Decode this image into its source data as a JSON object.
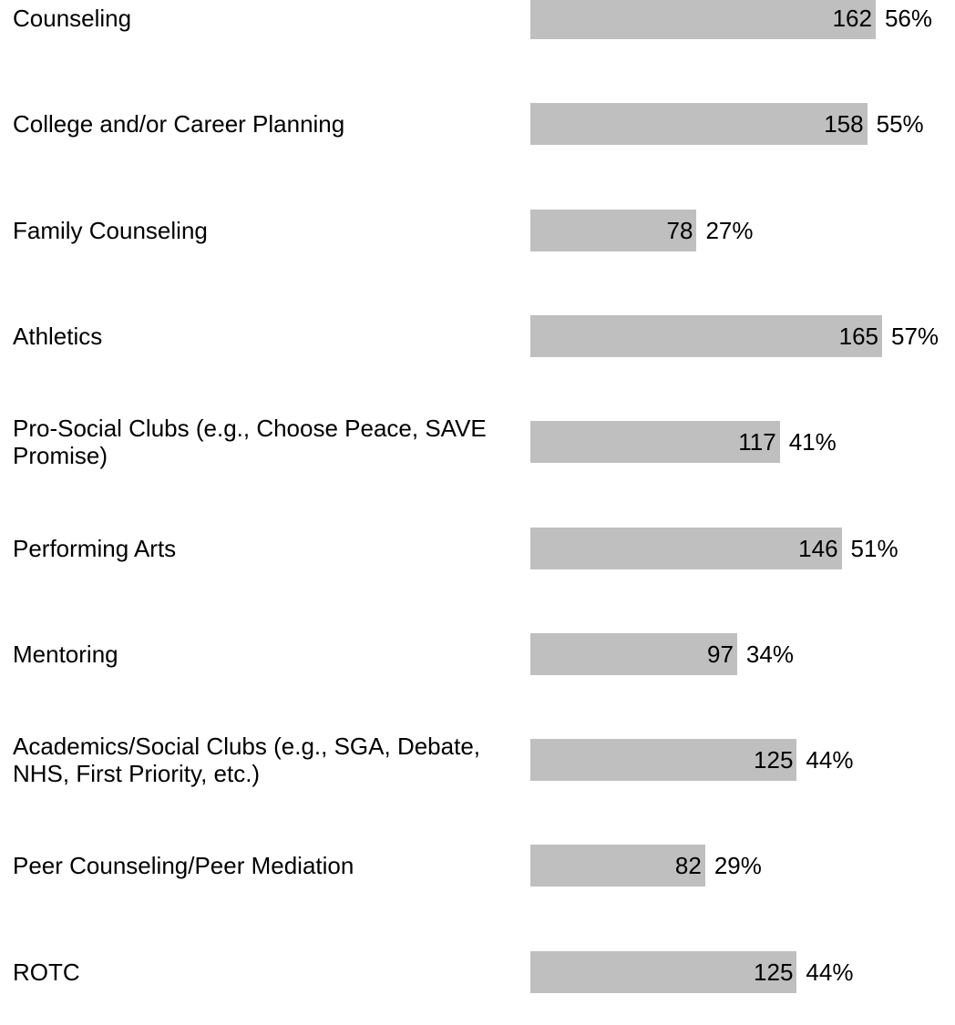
{
  "chart_data": {
    "type": "bar",
    "orientation": "horizontal",
    "color": "#bfbfbf",
    "categories": [
      "Counseling",
      "College and/or Career Planning",
      "Family Counseling",
      "Athletics",
      "Pro-Social Clubs (e.g., Choose Peace, SAVE Promise)",
      "Performing Arts",
      "Mentoring",
      "Academics/Social Clubs (e.g., SGA, Debate, NHS, First Priority, etc.)",
      "Peer Counseling/Peer Mediation",
      "ROTC"
    ],
    "values": [
      162,
      158,
      78,
      165,
      117,
      146,
      97,
      125,
      82,
      125
    ],
    "percent_values": [
      56,
      55,
      27,
      57,
      41,
      51,
      34,
      44,
      29,
      44
    ],
    "percent_labels": [
      "56%",
      "55%",
      "27%",
      "57%",
      "41%",
      "51%",
      "34%",
      "44%",
      "29%",
      "44%"
    ]
  }
}
